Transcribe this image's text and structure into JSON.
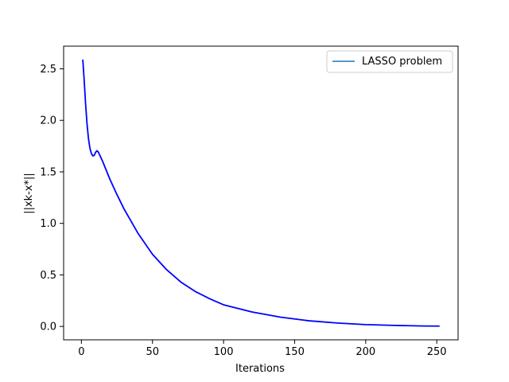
{
  "chart_data": {
    "type": "line",
    "title": "",
    "xlabel": "Iterations",
    "ylabel": "||xk-x*||",
    "xlim": [
      -12.5,
      265
    ],
    "ylim": [
      -0.13,
      2.72
    ],
    "xticks": [
      0,
      50,
      100,
      150,
      200,
      250
    ],
    "xtick_labels": [
      "0",
      "50",
      "100",
      "150",
      "200",
      "250"
    ],
    "yticks": [
      0.0,
      0.5,
      1.0,
      1.5,
      2.0,
      2.5
    ],
    "ytick_labels": [
      "0.0",
      "0.5",
      "1.0",
      "1.5",
      "2.0",
      "2.5"
    ],
    "grid": false,
    "legend": {
      "position": "top-right",
      "entries": [
        {
          "label": "LASSO problem",
          "color": "#1f77b4"
        }
      ]
    },
    "series": [
      {
        "name": "LASSO problem",
        "color": "#0000ff",
        "x": [
          1,
          2,
          3,
          4,
          5,
          6,
          7,
          8,
          9,
          10,
          11,
          12,
          15,
          20,
          25,
          30,
          40,
          50,
          60,
          70,
          80,
          90,
          100,
          120,
          140,
          160,
          180,
          200,
          220,
          240,
          252
        ],
        "y": [
          2.59,
          2.38,
          2.15,
          1.96,
          1.82,
          1.73,
          1.68,
          1.655,
          1.66,
          1.69,
          1.705,
          1.69,
          1.6,
          1.43,
          1.28,
          1.14,
          0.9,
          0.7,
          0.55,
          0.43,
          0.34,
          0.27,
          0.21,
          0.14,
          0.09,
          0.055,
          0.033,
          0.018,
          0.01,
          0.004,
          0.003
        ]
      }
    ]
  }
}
